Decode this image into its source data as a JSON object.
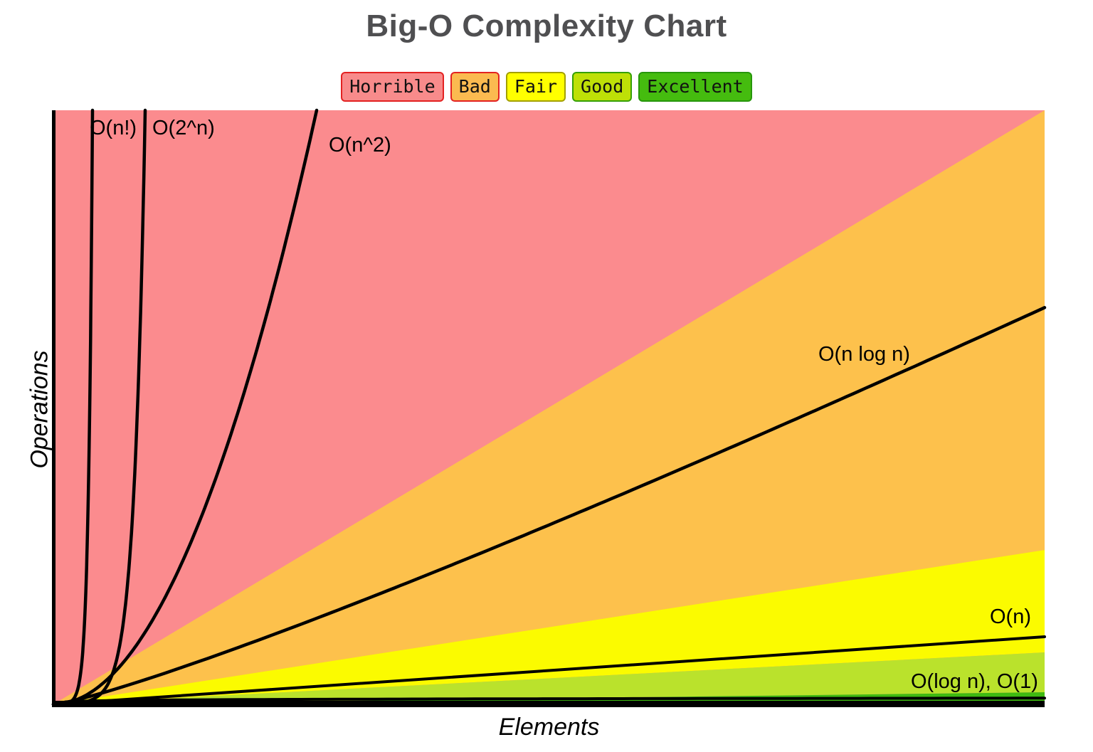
{
  "title": "Big-O Complexity Chart",
  "title_color": "#4F4F51",
  "legend": {
    "items": [
      {
        "label": "Horrible",
        "bg": "#F88B8B",
        "border": "#E32222"
      },
      {
        "label": "Bad",
        "bg": "#FBBA50",
        "border": "#E32222"
      },
      {
        "label": "Fair",
        "bg": "#FFFF00",
        "border": "#A3A000"
      },
      {
        "label": "Good",
        "bg": "#BEE007",
        "border": "#35A006"
      },
      {
        "label": "Excellent",
        "bg": "#45BC0F",
        "border": "#26960B"
      }
    ]
  },
  "chart_data": {
    "type": "line",
    "title": "Big-O Complexity Chart",
    "xlabel": "Elements",
    "ylabel": "Operations",
    "grid": false,
    "legend_position": "top-center",
    "axis_ticks": "none (qualitative chart, no numeric scale)",
    "regions": [
      {
        "name": "horrible",
        "rating": "Horrible",
        "color": "#FB8B8E",
        "extent": "above the origin-to-top-right diagonal"
      },
      {
        "name": "bad",
        "rating": "Bad",
        "color": "#FDC14C",
        "extent": "wedge from origin, right edge 0.26-1.0 of height"
      },
      {
        "name": "fair",
        "rating": "Fair",
        "color": "#FBFB00",
        "extent": "wedge from origin, right edge 0.087-0.26 of height"
      },
      {
        "name": "good",
        "rating": "Good",
        "color": "#BAE22C",
        "extent": "wedge from origin, right edge 0.02-0.087 of height"
      },
      {
        "name": "excellent",
        "rating": "Excellent",
        "color": "#3EBA11",
        "extent": "thin wedge from origin along x-axis, right edge 0-0.02 of height"
      }
    ],
    "series": [
      {
        "name": "O(n!)",
        "shape": "super-exponential",
        "exit": "top edge",
        "x_at_exit_frac": 0.04
      },
      {
        "name": "O(2^n)",
        "shape": "exponential",
        "exit": "top edge",
        "x_at_exit_frac": 0.093
      },
      {
        "name": "O(n^2)",
        "shape": "quadratic",
        "exit": "top edge",
        "x_at_exit_frac": 0.266
      },
      {
        "name": "O(n log n)",
        "shape": "linearithmic",
        "exit": "right edge",
        "y_at_exit_frac": 0.667
      },
      {
        "name": "O(n)",
        "shape": "linear",
        "exit": "right edge",
        "y_at_exit_frac": 0.114
      },
      {
        "name": "O(log n)",
        "shape": "logarithmic",
        "exit": "right edge",
        "y_at_exit_frac": 0.01
      },
      {
        "name": "O(1)",
        "shape": "constant",
        "exit": "right edge",
        "y_at_exit_frac": 0.0
      }
    ],
    "curve_labels": [
      {
        "text": "O(n!)"
      },
      {
        "text": "O(2^n)"
      },
      {
        "text": "O(n^2)"
      },
      {
        "text": "O(n log n)"
      },
      {
        "text": "O(n)"
      },
      {
        "text": "O(log n), O(1)"
      }
    ]
  }
}
